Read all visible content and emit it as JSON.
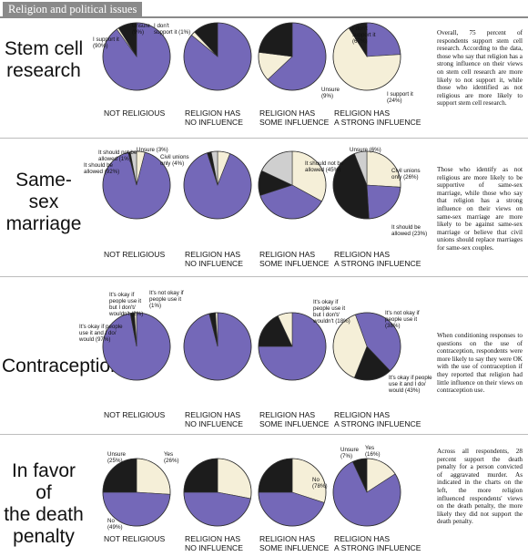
{
  "header": {
    "title": "Religion and political issues"
  },
  "categories": [
    "NOT RELIGIOUS",
    "RELIGION HAS NO INFLUENCE",
    "RELIGION HAS SOME INFLUENCE",
    "RELIGION HAS A STRONG INFLUENCE"
  ],
  "colors": {
    "purple": "#7468b8",
    "black": "#1c1c1c",
    "cream": "#f5efd8",
    "gray": "#cfcfcf"
  },
  "chart_data": [
    {
      "type": "pie",
      "title": "Stem cell research",
      "categories": [
        "NOT RELIGIOUS",
        "RELIGION HAS NO INFLUENCE",
        "RELIGION HAS SOME INFLUENCE",
        "RELIGION HAS A STRONG INFLUENCE"
      ],
      "series": [
        {
          "name": "I support it",
          "color": "purple",
          "values": [
            90,
            86,
            63,
            24
          ]
        },
        {
          "name": "I don't support it",
          "color": "cream",
          "values": [
            1,
            2,
            14,
            67
          ]
        },
        {
          "name": "Unsure",
          "color": "black",
          "values": [
            9,
            12,
            23,
            9
          ]
        }
      ],
      "start_angles": [
        0,
        0,
        0,
        0
      ],
      "annotations": [
        {
          "chart": 0,
          "text": "I support it (90%)",
          "lines": [
            "I support it",
            "(90%)"
          ]
        },
        {
          "chart": 0,
          "text": "Unsure (9%)",
          "lines": [
            "Unsure",
            "(9%)"
          ]
        },
        {
          "chart": 0,
          "text": "I don't support it (1%)",
          "lines": [
            "I don't",
            "support it (1%)"
          ]
        },
        {
          "chart": 3,
          "text": "I don't support it (67%)",
          "lines": [
            "I don't",
            "support it",
            "(67%)"
          ]
        },
        {
          "chart": 3,
          "text": "Unsure (9%)",
          "lines": [
            "Unsure",
            "(9%)"
          ]
        },
        {
          "chart": 3,
          "text": "I support it (24%)",
          "lines": [
            "I support it",
            "(24%)"
          ]
        }
      ]
    },
    {
      "type": "pie",
      "title": "Same-sex marriage",
      "categories": [
        "NOT RELIGIOUS",
        "RELIGION HAS NO INFLUENCE",
        "RELIGION HAS SOME INFLUENCE",
        "RELIGION HAS A STRONG INFLUENCE"
      ],
      "series": [
        {
          "name": "Civil unions only",
          "color": "cream",
          "values": [
            4,
            6,
            33,
            26
          ]
        },
        {
          "name": "It should be allowed",
          "color": "purple",
          "values": [
            92,
            89,
            37,
            23
          ]
        },
        {
          "name": "It should not be allowed",
          "color": "black",
          "values": [
            1,
            2,
            12,
            45
          ]
        },
        {
          "name": "Unsure",
          "color": "gray",
          "values": [
            3,
            3,
            18,
            6
          ]
        }
      ],
      "start_angles": [
        0,
        0,
        0,
        0
      ],
      "annotations": [
        {
          "chart": 0,
          "text": "It should be allowed (92%)",
          "lines": [
            "It should be",
            "allowed (92%)"
          ]
        },
        {
          "chart": 0,
          "text": "It should not be allowed (1%)",
          "lines": [
            "It should not be",
            "allowed (1%)"
          ]
        },
        {
          "chart": 0,
          "text": "Unsure (3%)",
          "lines": [
            "Unsure (3%)"
          ]
        },
        {
          "chart": 0,
          "text": "Civil unions only (4%)",
          "lines": [
            "Civil unions",
            "only (4%)"
          ]
        },
        {
          "chart": 3,
          "text": "It should not be allowed (45%)",
          "lines": [
            "It should not be",
            "allowed (45%)"
          ]
        },
        {
          "chart": 3,
          "text": "Unsure (6%)",
          "lines": [
            "Unsure (6%)"
          ]
        },
        {
          "chart": 3,
          "text": "Civil unions only (26%)",
          "lines": [
            "Civil unions",
            "only (26%)"
          ]
        },
        {
          "chart": 3,
          "text": "It should be allowed (23%)",
          "lines": [
            "It should be",
            "allowed (23%)"
          ]
        }
      ]
    },
    {
      "type": "pie",
      "title": "Contraception",
      "categories": [
        "NOT RELIGIOUS",
        "RELIGION HAS NO INFLUENCE",
        "RELIGION HAS SOME INFLUENCE",
        "RELIGION HAS A STRONG INFLUENCE"
      ],
      "series": [
        {
          "name": "It's okay if people use it and I do/would",
          "color": "purple",
          "values": [
            97,
            96,
            75,
            43
          ]
        },
        {
          "name": "It's okay if people use it but I don't/wouldn't",
          "color": "black",
          "values": [
            2,
            3,
            18,
            18
          ]
        },
        {
          "name": "It's not okay if people use it",
          "color": "cream",
          "values": [
            1,
            1,
            7,
            38
          ]
        }
      ],
      "start_angles": [
        0,
        0,
        0,
        -20
      ],
      "annotations": [
        {
          "chart": 0,
          "text": "It's okay if people use it but I don't/wouldn't (2%)",
          "lines": [
            "It's okay if",
            "people use it",
            "but I don't/",
            "wouldn't (2%)"
          ]
        },
        {
          "chart": 0,
          "text": "It's not okay if people use it (1%)",
          "lines": [
            "It's not okay if",
            "people use it",
            "(1%)"
          ]
        },
        {
          "chart": 0,
          "text": "It's okay if people use it and I do/would (97%)",
          "lines": [
            "It's okay if people",
            "use it and I do/",
            "would (97%)"
          ]
        },
        {
          "chart": 3,
          "text": "It's okay if people use it but I don't/wouldn't (18%)",
          "lines": [
            "It's okay if",
            "people use it",
            "but I don't/",
            "wouldn't (18%)"
          ]
        },
        {
          "chart": 3,
          "text": "It's not okay if people use it (38%)",
          "lines": [
            "It's not okay if",
            "people use it",
            "(38%)"
          ]
        },
        {
          "chart": 3,
          "text": "It's okay if people use it and I do/would (43%)",
          "lines": [
            "It's okay if people",
            "use it and I do/",
            "would (43%)"
          ]
        }
      ]
    },
    {
      "type": "pie",
      "title": "In favor of the death penalty",
      "categories": [
        "NOT RELIGIOUS",
        "RELIGION HAS NO INFLUENCE",
        "RELIGION HAS SOME INFLUENCE",
        "RELIGION HAS A STRONG INFLUENCE"
      ],
      "series": [
        {
          "name": "Yes",
          "color": "cream",
          "values": [
            26,
            28,
            30,
            16
          ]
        },
        {
          "name": "No",
          "color": "purple",
          "values": [
            49,
            47,
            45,
            78
          ]
        },
        {
          "name": "Unsure",
          "color": "black",
          "values": [
            25,
            25,
            25,
            7
          ]
        }
      ],
      "start_angles": [
        0,
        0,
        0,
        0
      ],
      "annotations": [
        {
          "chart": 0,
          "text": "Unsure (25%)",
          "lines": [
            "Unsure",
            "(25%)"
          ]
        },
        {
          "chart": 0,
          "text": "Yes (26%)",
          "lines": [
            "Yes",
            "(26%)"
          ]
        },
        {
          "chart": 0,
          "text": "No (49%)",
          "lines": [
            "No",
            "(49%)"
          ]
        },
        {
          "chart": 3,
          "text": "No (78%)",
          "lines": [
            "No",
            "(78%)"
          ]
        },
        {
          "chart": 3,
          "text": "Unsure (7%)",
          "lines": [
            "Unsure",
            "(7%)"
          ]
        },
        {
          "chart": 3,
          "text": "Yes (16%)",
          "lines": [
            "Yes",
            "(16%)"
          ]
        }
      ]
    }
  ],
  "sections": [
    {
      "title_lines": [
        "Stem cell",
        "research"
      ],
      "description": "Overall, 75 percent of respondents support stem cell research. According to the data, those who say that religion has a strong influence on their views on stem cell research are more likely to not support it, while those who identified as not religious are more likely to support stem cell research."
    },
    {
      "title_lines": [
        "Same-sex",
        "marriage"
      ],
      "description": "Those who identify as not religious are more likely to be supportive of same-sex marriage, while those who say that religion has a strong influence on their views on same-sex marriage are more likely to be against same-sex marriage or believe that civil unions should replace marriages for same-sex couples."
    },
    {
      "title_lines": [
        "Contraception"
      ],
      "description": "When conditioning responses to questions on the use of contraception, respondents were more likely to say they were OK with the use of contraception if they reported that religion had little influence on their views on contraception use."
    },
    {
      "title_lines": [
        "In favor of",
        "the death",
        "penalty"
      ],
      "description": "Across all respondents, 28 percent support the death penalty for a person convicted of aggravated murder. As indicated in the charts on the left, the more religion influenced respondents' views on the death penalty, the more likely they did not support the death penalty."
    }
  ]
}
